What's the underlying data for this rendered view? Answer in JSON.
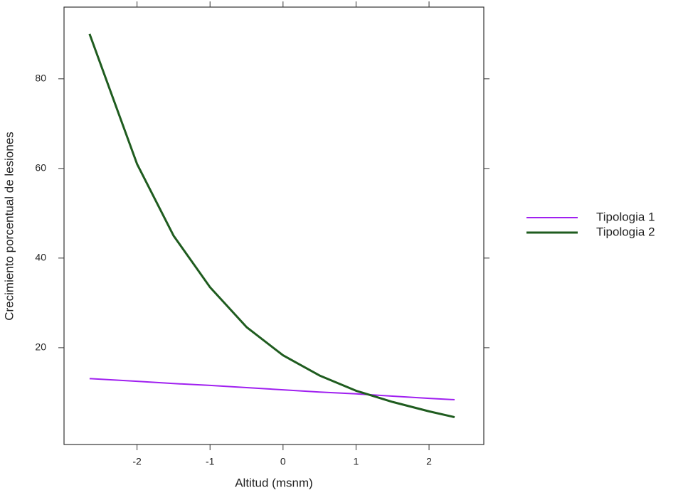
{
  "chart_data": {
    "type": "line",
    "x_label": "Altitud (msnm)",
    "y_label": "Crecimiento porcentual de lesiones",
    "x": [
      -2.65,
      -2,
      -1.5,
      -1,
      -0.5,
      0,
      0.5,
      1,
      1.5,
      2,
      2.35
    ],
    "series": [
      {
        "name": "Tipologia 1",
        "color": "#a020f0",
        "values": [
          13.1,
          12.5,
          12.0,
          11.6,
          11.1,
          10.6,
          10.1,
          9.7,
          9.2,
          8.7,
          8.4
        ]
      },
      {
        "name": "Tipologia 2",
        "color": "#1f5c1f",
        "values": [
          90,
          61,
          45,
          33.5,
          24.6,
          18.3,
          13.8,
          10.4,
          7.9,
          5.8,
          4.5
        ]
      }
    ],
    "xlim": [
      -3.0,
      2.75
    ],
    "xticks": [
      -2,
      -1,
      0,
      1,
      2
    ],
    "ylim": [
      -1.6,
      96
    ],
    "yticks": [
      20,
      40,
      60,
      80
    ],
    "grid": false,
    "legend": "right"
  }
}
